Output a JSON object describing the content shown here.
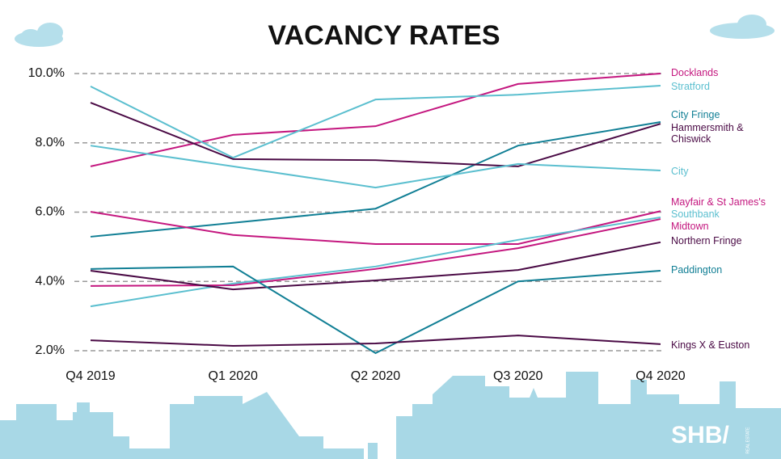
{
  "chart_data": {
    "type": "line",
    "title": "VACANCY RATES",
    "categories": [
      "Q4 2019",
      "Q1 2020",
      "Q2 2020",
      "Q3 2020",
      "Q4 2020"
    ],
    "ylim": [
      2,
      10
    ],
    "yticks": [
      {
        "value": 2,
        "label": "2.0%"
      },
      {
        "value": 4,
        "label": "4.0%"
      },
      {
        "value": 6,
        "label": "6.0%"
      },
      {
        "value": 8,
        "label": "8.0%"
      },
      {
        "value": 10,
        "label": "10.0%"
      }
    ],
    "grid": true,
    "series": [
      {
        "name": "Docklands",
        "color": "#c4177f",
        "values": [
          7.32,
          8.23,
          8.48,
          9.7,
          10.0
        ]
      },
      {
        "name": "Stratford",
        "color": "#5bbfcf",
        "values": [
          9.63,
          7.57,
          9.25,
          9.39,
          9.65
        ]
      },
      {
        "name": "City Fringe",
        "color": "#117f95",
        "values": [
          5.29,
          5.69,
          6.1,
          7.92,
          8.6
        ]
      },
      {
        "name": "Hammersmith & Chiswick",
        "color": "#4a0a45",
        "values": [
          9.16,
          7.53,
          7.5,
          7.32,
          8.55
        ]
      },
      {
        "name": "City",
        "color": "#5bbfcf",
        "values": [
          7.92,
          7.32,
          6.71,
          7.39,
          7.2
        ]
      },
      {
        "name": "Mayfair & St James's",
        "color": "#c4177f",
        "values": [
          6.01,
          5.34,
          5.08,
          5.08,
          6.03
        ]
      },
      {
        "name": "Southbank",
        "color": "#5bbfcf",
        "values": [
          3.28,
          3.94,
          4.43,
          5.2,
          5.85
        ]
      },
      {
        "name": "Midtown",
        "color": "#c4177f",
        "values": [
          3.87,
          3.89,
          4.36,
          4.96,
          5.8
        ]
      },
      {
        "name": "Northern Fringe",
        "color": "#4a0a45",
        "values": [
          4.31,
          3.77,
          4.03,
          4.33,
          5.13
        ]
      },
      {
        "name": "Paddington",
        "color": "#117f95",
        "values": [
          4.36,
          4.43,
          1.93,
          4.0,
          4.31
        ]
      },
      {
        "name": "Kings X & Euston",
        "color": "#4a0a45",
        "values": [
          2.3,
          2.14,
          2.21,
          2.44,
          2.19
        ]
      }
    ],
    "logo": "SHB/",
    "logo_subtext": "REAL ESTATE"
  }
}
